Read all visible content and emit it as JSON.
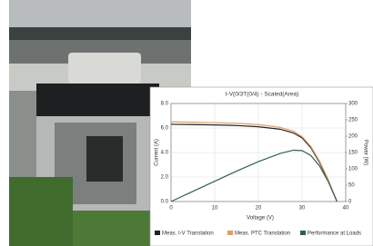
{
  "chart_data": {
    "type": "line",
    "title": "I-V(0/3T(0/4) - Scaled(Area)",
    "x_label": "Voltage (V)",
    "y_label": "Current (A)",
    "y2_label": "Power (W)",
    "x": [
      0,
      5,
      10,
      15,
      20,
      25,
      28,
      30,
      32,
      34,
      36,
      38
    ],
    "series": [
      {
        "name": "Meas. I-V Translation",
        "color": "#222222",
        "values": [
          6.3,
          6.28,
          6.25,
          6.2,
          6.1,
          5.9,
          5.6,
          5.2,
          4.4,
          3.2,
          1.7,
          0
        ]
      },
      {
        "name": "Meas. PTC Translation",
        "color": "#d9a066",
        "values": [
          6.5,
          6.47,
          6.43,
          6.38,
          6.28,
          6.05,
          5.75,
          5.3,
          4.5,
          3.3,
          1.8,
          0
        ]
      },
      {
        "name": "Performance at Loads",
        "color": "#2f5f5a",
        "axis": "y2",
        "values": [
          0,
          31,
          62,
          93,
          122,
          147,
          157,
          156,
          141,
          109,
          61,
          0
        ]
      }
    ],
    "xlim": [
      0,
      40
    ],
    "xticks": [
      0,
      10,
      20,
      30,
      40
    ],
    "ylim": [
      0,
      8
    ],
    "yticks": [
      {
        "value": 0,
        "label": "0.0"
      },
      {
        "value": 2,
        "label": "2.0"
      },
      {
        "value": 4,
        "label": "4.0"
      },
      {
        "value": 6,
        "label": "6.0"
      },
      {
        "value": 8,
        "label": "8.0"
      }
    ],
    "y2lim": [
      0,
      300
    ],
    "y2ticks": [
      0,
      50,
      100,
      150,
      200,
      250,
      300
    ],
    "grid": true
  }
}
